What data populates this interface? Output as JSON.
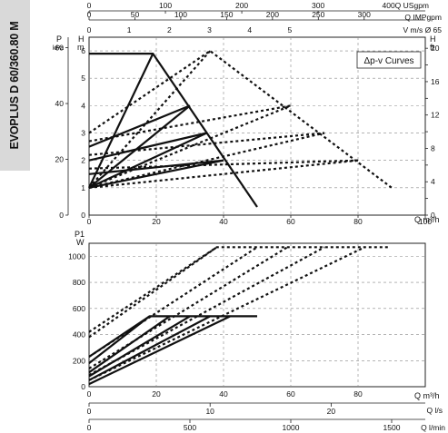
{
  "model": "EVOPLUS D 60/360.80 M",
  "legend": "Δp-v Curves",
  "top_scales": [
    {
      "label": "400Q USgpm",
      "ticks": [
        0,
        100,
        200,
        300
      ]
    },
    {
      "label": "Q IMPgpm",
      "ticks": [
        0,
        50,
        100,
        150,
        200,
        250,
        300
      ]
    },
    {
      "label": "V m/s Ø 65",
      "ticks": [
        0,
        1,
        2,
        3,
        4,
        5
      ]
    }
  ],
  "bottom_scales": [
    {
      "label": "Q l/s",
      "ticks": [
        0,
        10,
        20
      ]
    },
    {
      "label": "Q l/min",
      "ticks": [
        0,
        500,
        1000,
        1500
      ]
    }
  ],
  "chart_data": [
    {
      "type": "line",
      "title": "",
      "xlabel": "Q m³/h",
      "ylabel_left": "H m",
      "ylabel_left2": "P kPa",
      "ylabel_right": "H ft",
      "xlim": [
        0,
        100
      ],
      "ylim": [
        0,
        6.5
      ],
      "xticks": [
        0,
        20,
        40,
        60,
        80,
        100
      ],
      "yticks": [
        0,
        1,
        2,
        3,
        4,
        5,
        6
      ],
      "kpa_ticks": [
        0,
        20,
        40,
        60
      ],
      "ft_ticks": [
        0,
        2,
        4,
        6,
        8,
        10,
        12,
        14,
        16,
        18,
        20
      ],
      "series": [
        {
          "style": "solid",
          "x": [
            0,
            19,
            50
          ],
          "y": [
            5.9,
            5.9,
            0.3
          ]
        },
        {
          "style": "solid",
          "x": [
            0,
            30
          ],
          "y": [
            2.5,
            4.0
          ]
        },
        {
          "style": "solid",
          "x": [
            0,
            35
          ],
          "y": [
            2.0,
            3.0
          ]
        },
        {
          "style": "solid",
          "x": [
            0,
            40
          ],
          "y": [
            1.5,
            2.0
          ]
        },
        {
          "style": "solid",
          "x": [
            0,
            19
          ],
          "y": [
            1.0,
            5.9
          ]
        },
        {
          "style": "solid",
          "x": [
            0,
            30
          ],
          "y": [
            1.0,
            4.0
          ]
        },
        {
          "style": "solid",
          "x": [
            0,
            35
          ],
          "y": [
            1.0,
            3.0
          ]
        },
        {
          "style": "solid",
          "x": [
            0,
            40
          ],
          "y": [
            1.0,
            2.0
          ]
        },
        {
          "style": "dotted",
          "x": [
            0,
            36,
            90
          ],
          "y": [
            3.0,
            6.0,
            1.0
          ]
        },
        {
          "style": "dotted",
          "x": [
            0,
            60
          ],
          "y": [
            2.7,
            4.0
          ]
        },
        {
          "style": "dotted",
          "x": [
            0,
            70
          ],
          "y": [
            2.2,
            3.0
          ]
        },
        {
          "style": "dotted",
          "x": [
            0,
            80
          ],
          "y": [
            1.7,
            2.0
          ]
        },
        {
          "style": "dotted",
          "x": [
            0,
            36
          ],
          "y": [
            1.0,
            6.0
          ]
        },
        {
          "style": "dotted",
          "x": [
            0,
            60
          ],
          "y": [
            1.0,
            4.0
          ]
        },
        {
          "style": "dotted",
          "x": [
            0,
            70
          ],
          "y": [
            1.0,
            3.0
          ]
        },
        {
          "style": "dotted",
          "x": [
            0,
            80
          ],
          "y": [
            1.0,
            2.0
          ]
        }
      ]
    },
    {
      "type": "line",
      "title": "",
      "xlabel": "Q m³/h",
      "ylabel": "P1 W",
      "xlim": [
        0,
        100
      ],
      "ylim": [
        0,
        1100
      ],
      "xticks": [
        0,
        20,
        40,
        60,
        80
      ],
      "yticks": [
        0,
        200,
        400,
        600,
        800,
        1000
      ],
      "series": [
        {
          "style": "solid",
          "x": [
            0,
            18,
            50
          ],
          "y": [
            230,
            540,
            540
          ]
        },
        {
          "style": "solid",
          "x": [
            0,
            18
          ],
          "y": [
            180,
            540
          ]
        },
        {
          "style": "solid",
          "x": [
            0,
            24
          ],
          "y": [
            110,
            540
          ]
        },
        {
          "style": "solid",
          "x": [
            0,
            30
          ],
          "y": [
            80,
            540
          ]
        },
        {
          "style": "solid",
          "x": [
            0,
            36
          ],
          "y": [
            50,
            540
          ]
        },
        {
          "style": "solid",
          "x": [
            0,
            42
          ],
          "y": [
            20,
            540
          ]
        },
        {
          "style": "dotted",
          "x": [
            0,
            38,
            89
          ],
          "y": [
            420,
            1070,
            1070
          ]
        },
        {
          "style": "dotted",
          "x": [
            0,
            38
          ],
          "y": [
            380,
            1070
          ]
        },
        {
          "style": "dotted",
          "x": [
            0,
            50
          ],
          "y": [
            230,
            1070
          ]
        },
        {
          "style": "dotted",
          "x": [
            0,
            59
          ],
          "y": [
            140,
            1070
          ]
        },
        {
          "style": "dotted",
          "x": [
            0,
            70
          ],
          "y": [
            90,
            1070
          ]
        },
        {
          "style": "dotted",
          "x": [
            0,
            82
          ],
          "y": [
            50,
            1070
          ]
        }
      ]
    }
  ]
}
